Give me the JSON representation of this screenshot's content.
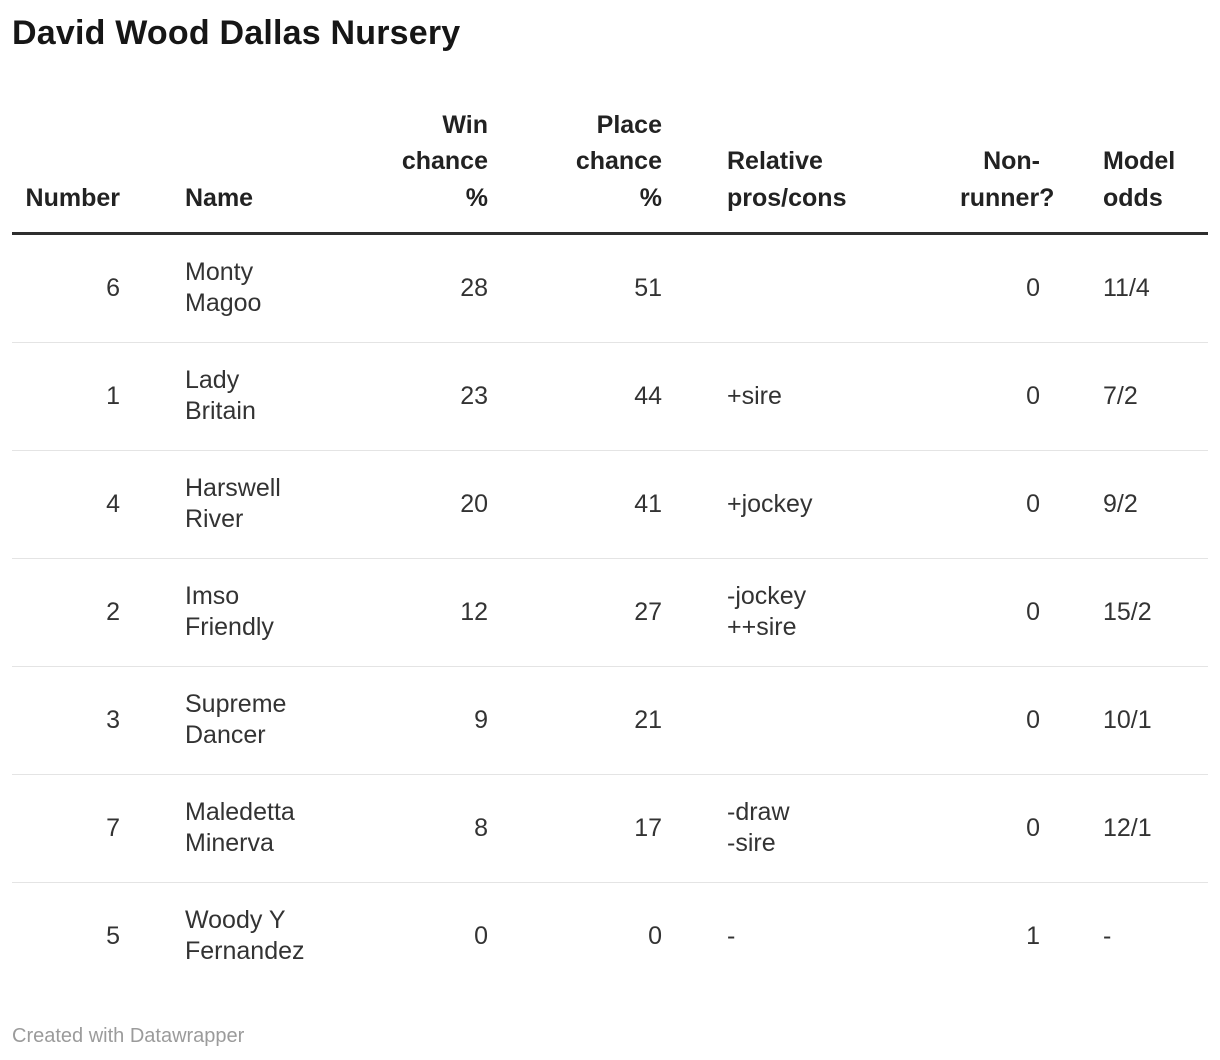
{
  "title": "David Wood Dallas Nursery",
  "footer": {
    "attribution": "Created with Datawrapper"
  },
  "table": {
    "columns": [
      {
        "label": "Number"
      },
      {
        "label": "Name"
      },
      {
        "label": "Win\nchance\n%"
      },
      {
        "label": "Place\nchance\n%"
      },
      {
        "label": "Relative\npros/cons"
      },
      {
        "label": "Non-\nrunner?"
      },
      {
        "label": "Model\nodds"
      }
    ],
    "rows": [
      [
        "6",
        "Monty\nMagoo",
        "28",
        "51",
        "",
        "0",
        "11/4"
      ],
      [
        "1",
        "Lady\nBritain",
        "23",
        "44",
        "+sire",
        "0",
        "7/2"
      ],
      [
        "4",
        "Harswell\nRiver",
        "20",
        "41",
        "+jockey",
        "0",
        "9/2"
      ],
      [
        "2",
        "Imso\nFriendly",
        "12",
        "27",
        "-jockey\n++sire",
        "0",
        "15/2"
      ],
      [
        "3",
        "Supreme\nDancer",
        "9",
        "21",
        "",
        "0",
        "10/1"
      ],
      [
        "7",
        "Maledetta\nMinerva",
        "8",
        "17",
        "-draw\n-sire",
        "0",
        "12/1"
      ],
      [
        "5",
        "Woody Y\nFernandez",
        "0",
        "0",
        "-",
        "1",
        "-"
      ]
    ]
  },
  "chart_data": {
    "type": "table",
    "title": "David Wood Dallas Nursery",
    "columns": [
      "Number",
      "Name",
      "Win chance %",
      "Place chance %",
      "Relative pros/cons",
      "Non-runner?",
      "Model odds"
    ],
    "rows": [
      [
        6,
        "Monty Magoo",
        28,
        51,
        "",
        0,
        "11/4"
      ],
      [
        1,
        "Lady Britain",
        23,
        44,
        "+sire",
        0,
        "7/2"
      ],
      [
        4,
        "Harswell River",
        20,
        41,
        "+jockey",
        0,
        "9/2"
      ],
      [
        2,
        "Imso Friendly",
        12,
        27,
        "-jockey ++sire",
        0,
        "15/2"
      ],
      [
        3,
        "Supreme Dancer",
        9,
        21,
        "",
        0,
        "10/1"
      ],
      [
        7,
        "Maledetta Minerva",
        8,
        17,
        "-draw -sire",
        0,
        "12/1"
      ],
      [
        5,
        "Woody Y Fernandez",
        0,
        0,
        "-",
        1,
        "-"
      ]
    ],
    "attribution": "Created with Datawrapper"
  }
}
